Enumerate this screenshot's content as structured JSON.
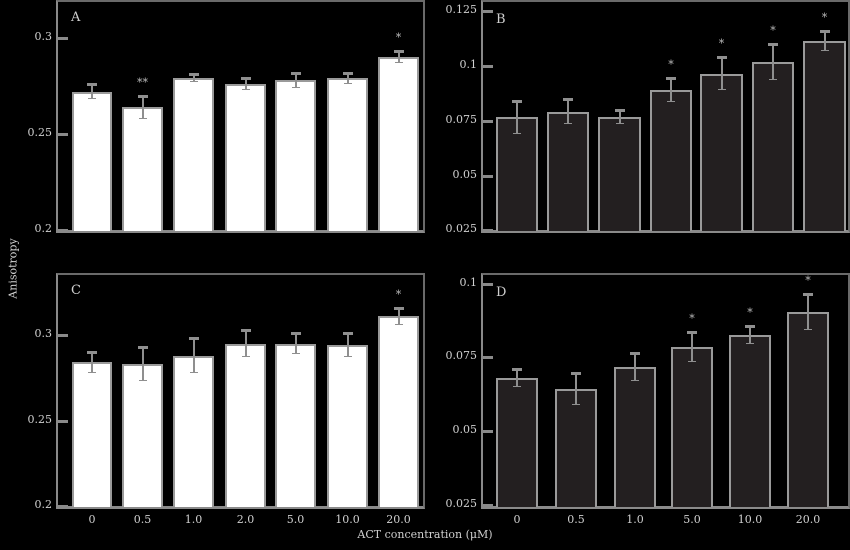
{
  "figure": {
    "ylabel": "Anisotropy",
    "xlabel": "ACT concentration (μM)"
  },
  "chart_data": [
    {
      "type": "bar",
      "panel": "A",
      "categories": [
        "0",
        "0.5",
        "1.0",
        "2.0",
        "5.0",
        "10.0",
        "20.0"
      ],
      "values": [
        0.272,
        0.264,
        0.279,
        0.276,
        0.278,
        0.279,
        0.29
      ],
      "errors": [
        0.004,
        0.006,
        0.002,
        0.003,
        0.004,
        0.003,
        0.003
      ],
      "significance": [
        "",
        "**",
        "",
        "",
        "",
        "",
        "*"
      ],
      "ylim": [
        0.2,
        0.3
      ],
      "yticks": [
        "0.3",
        "0.25",
        "0.2"
      ],
      "bar_color": "#ffffff",
      "xlabel": "",
      "ylabel": "Anisotropy"
    },
    {
      "type": "bar",
      "panel": "B",
      "categories": [
        "0",
        "0.5",
        "1.0",
        "2.0",
        "5.0",
        "10.0",
        "20.0"
      ],
      "values": [
        0.0764,
        0.0791,
        0.0768,
        0.0891,
        0.0964,
        0.1018,
        0.1114
      ],
      "errors": [
        0.0077,
        0.0055,
        0.0032,
        0.0055,
        0.0077,
        0.0082,
        0.0045
      ],
      "significance": [
        "",
        "",
        "",
        "*",
        "*",
        "*",
        "*"
      ],
      "ylim": [
        0.025,
        0.125
      ],
      "yticks": [
        "0.125",
        "0.1",
        "0.075",
        "0.05",
        "0.025"
      ],
      "bar_color": "#231f20",
      "xlabel": "",
      "ylabel": "Anisotropy"
    },
    {
      "type": "bar",
      "panel": "C",
      "categories": [
        "0",
        "0.5",
        "1.0",
        "2.0",
        "5.0",
        "10.0",
        "20.0"
      ],
      "values": [
        0.284,
        0.283,
        0.288,
        0.295,
        0.295,
        0.294,
        0.311
      ],
      "errors": [
        0.006,
        0.01,
        0.01,
        0.008,
        0.006,
        0.007,
        0.005
      ],
      "significance": [
        "",
        "",
        "",
        "",
        "",
        "",
        "*"
      ],
      "ylim": [
        0.2,
        0.33
      ],
      "yticks": [
        "0.3",
        "0.25",
        "0.2"
      ],
      "bar_color": "#ffffff",
      "xlabel": "ACT concentration (μM)",
      "ylabel": "Anisotropy"
    },
    {
      "type": "bar",
      "panel": "D",
      "categories": [
        "0",
        "0.5",
        "1.0",
        "5.0",
        "10.0",
        "20.0"
      ],
      "values": [
        0.068,
        0.0643,
        0.0718,
        0.0786,
        0.0827,
        0.0905
      ],
      "errors": [
        0.003,
        0.0054,
        0.0048,
        0.0051,
        0.0031,
        0.0061
      ],
      "significance": [
        "",
        "",
        "",
        "*",
        "*",
        "*"
      ],
      "ylim": [
        0.025,
        0.1
      ],
      "yticks": [
        "0.1",
        "0.075",
        "0.05",
        "0.025"
      ],
      "bar_color": "#231f20",
      "xlabel": "ACT concentration (μM)",
      "ylabel": "Anisotropy"
    }
  ],
  "panels": {
    "A": {
      "letter": "A",
      "xticks": [
        "0",
        "0.5",
        "1.0",
        "2.0",
        "5.0",
        "10.0",
        "20.0"
      ]
    },
    "B": {
      "letter": "B"
    },
    "C": {
      "letter": "C",
      "xticks": [
        "0",
        "0.5",
        "1.0",
        "2.0",
        "5.0",
        "10.0",
        "20.0"
      ]
    },
    "D": {
      "letter": "D",
      "xticks": [
        "0",
        "0.5",
        "1.0",
        "5.0",
        "10.0",
        "20.0"
      ]
    }
  }
}
